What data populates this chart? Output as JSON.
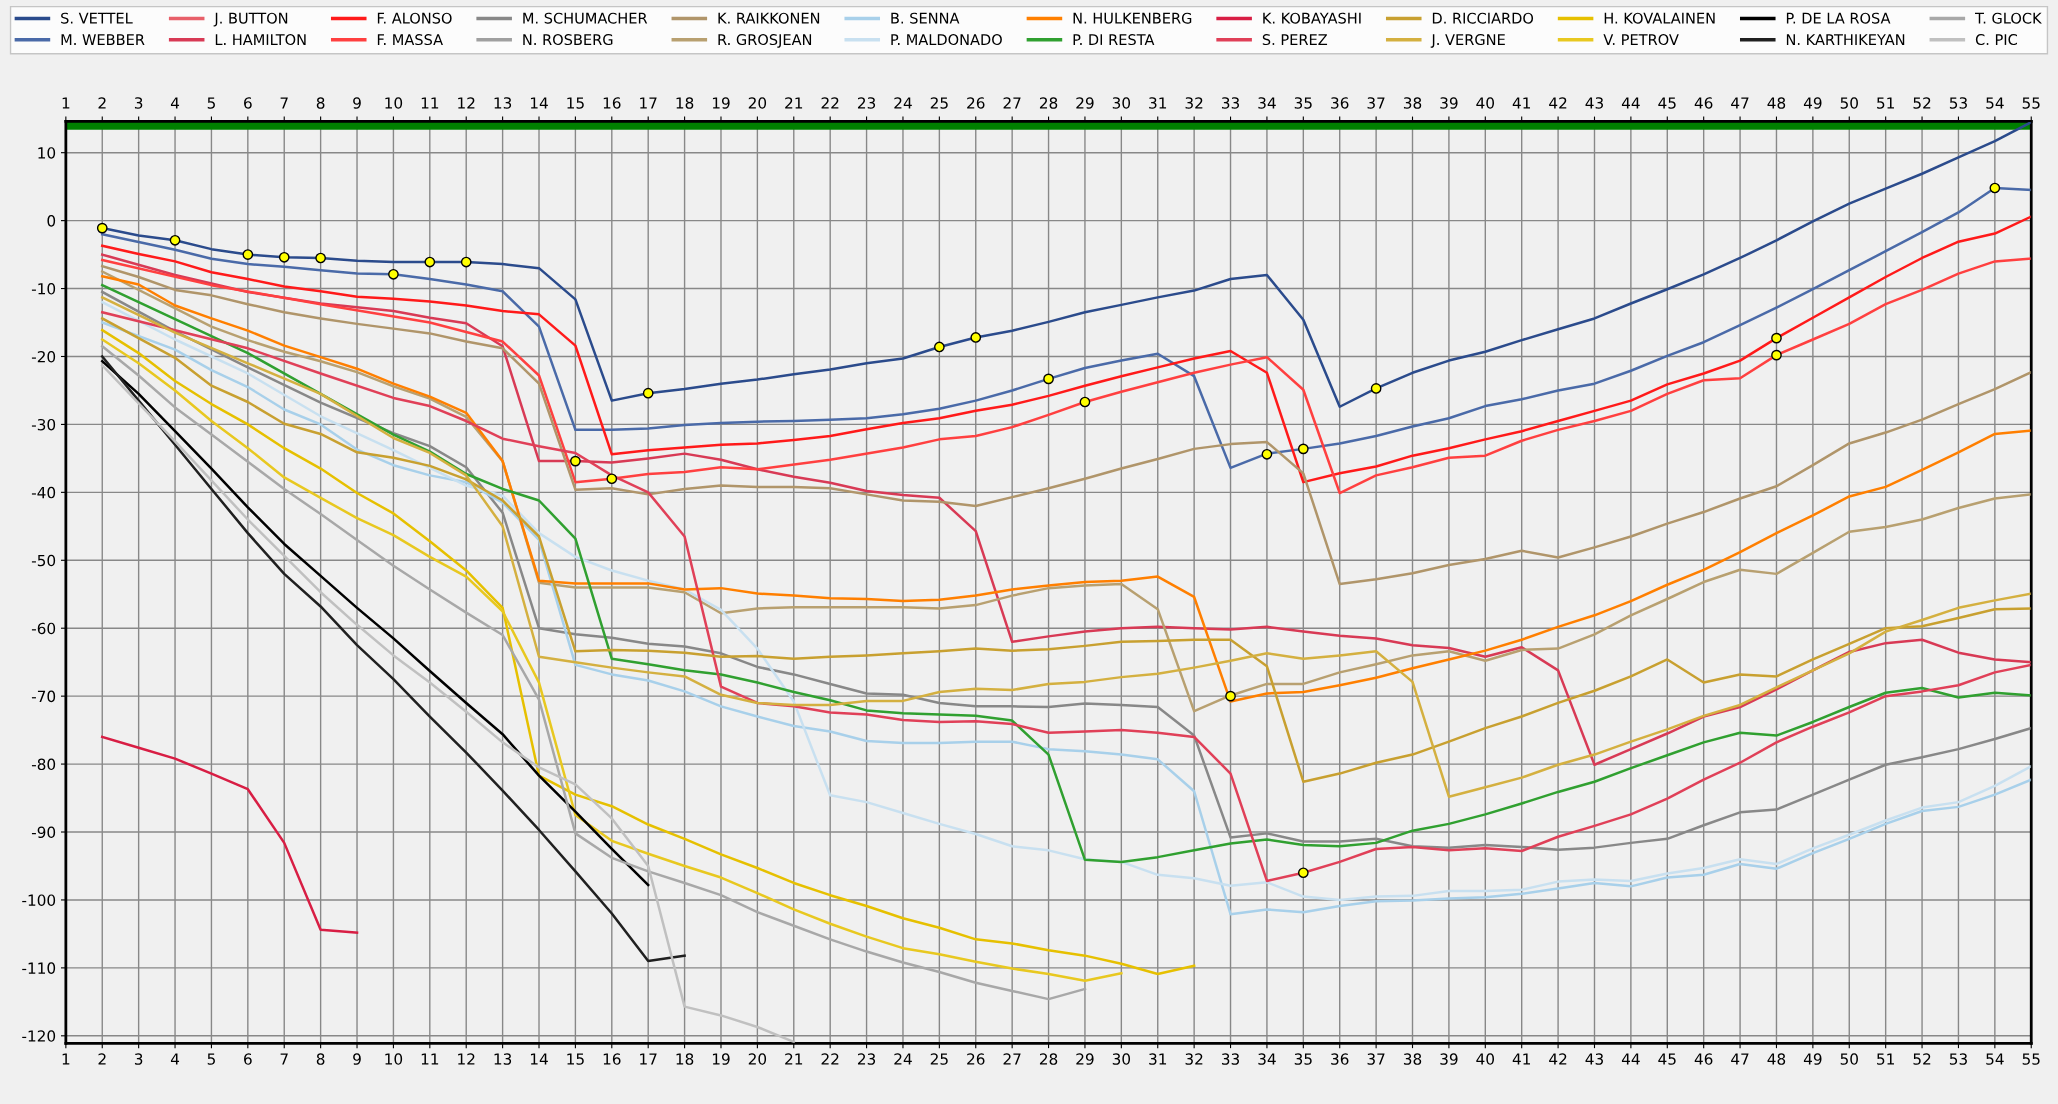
{
  "chart_data": {
    "type": "line",
    "xlim": [
      1,
      55
    ],
    "xticks": [
      1,
      2,
      3,
      4,
      5,
      6,
      7,
      8,
      9,
      10,
      11,
      12,
      13,
      14,
      15,
      16,
      17,
      18,
      19,
      20,
      21,
      22,
      23,
      24,
      25,
      26,
      27,
      28,
      29,
      30,
      31,
      32,
      33,
      34,
      35,
      36,
      37,
      38,
      39,
      40,
      41,
      42,
      43,
      44,
      45,
      46,
      47,
      48,
      49,
      50,
      51,
      52,
      53,
      54,
      55
    ],
    "x2lim": [
      1,
      55
    ],
    "x2ticks": [
      1,
      2,
      3,
      4,
      5,
      6,
      7,
      8,
      9,
      10,
      11,
      12,
      13,
      14,
      15,
      16,
      17,
      18,
      19,
      20,
      21,
      22,
      23,
      24,
      25,
      26,
      27,
      28,
      29,
      30,
      31,
      32,
      33,
      34,
      35,
      36,
      37,
      38,
      39,
      40,
      41,
      42,
      43,
      44,
      45,
      46,
      47,
      48,
      49,
      50,
      51,
      52,
      53,
      54,
      55
    ],
    "ylim": [
      -121.1,
      14.6
    ],
    "yticks": [
      -120,
      -110,
      -100,
      -90,
      -80,
      -70,
      -60,
      -50,
      -40,
      -30,
      -20,
      -10,
      0,
      10
    ],
    "grid": true,
    "legend": "top",
    "line_style": "solid",
    "ref_lines": [
      {
        "axis": "y",
        "value": 14.1,
        "color": "#008000"
      }
    ],
    "series": [
      {
        "name": "S. VETTEL",
        "color": "#2b4b8c",
        "x": [
          2,
          3,
          4,
          5,
          6,
          7,
          8,
          9,
          10,
          11,
          12,
          13,
          14,
          15,
          16,
          17,
          18,
          19,
          20,
          21,
          22,
          23,
          24,
          25,
          26,
          27,
          28,
          29,
          30,
          31,
          32,
          33,
          34,
          35,
          36,
          37,
          38,
          39,
          40,
          41,
          42,
          43,
          44,
          45,
          46,
          47,
          48,
          49,
          50,
          51,
          52,
          53,
          54,
          55
        ],
        "values": [
          -1.1,
          -2.2,
          -2.9,
          -4.2,
          -5,
          -5.4,
          -5.5,
          -5.9,
          -6.1,
          -6.1,
          -6.1,
          -6.4,
          -7.0,
          -11.6,
          -26.5,
          -25.4,
          -24.8,
          -24.0,
          -23.4,
          -22.6,
          -21.9,
          -21.0,
          -20.3,
          -18.6,
          -17.2,
          -16.2,
          -14.9,
          -13.5,
          -12.4,
          -11.3,
          -10.3,
          -8.6,
          -8.0,
          -14.6,
          -27.4,
          -24.7,
          -22.4,
          -20.6,
          -19.3,
          -17.6,
          -16.0,
          -14.4,
          -12.2,
          -10.1,
          -7.9,
          -5.5,
          -2.9,
          -0.1,
          2.5,
          4.7,
          6.9,
          9.3,
          11.7,
          14.5
        ]
      },
      {
        "name": "M. WEBBER",
        "color": "#4a6aa8",
        "x": [
          2,
          4,
          5,
          6,
          7,
          8,
          9,
          10,
          11,
          12,
          13,
          14,
          15,
          16,
          17,
          18,
          19,
          20,
          21,
          22,
          23,
          24,
          25,
          26,
          27,
          28,
          29,
          30,
          31,
          32,
          33,
          34,
          35,
          36,
          37,
          38,
          39,
          40,
          41,
          42,
          43,
          44,
          45,
          46,
          47,
          48,
          49,
          50,
          51,
          52,
          53,
          54,
          55
        ],
        "values": [
          -2.0,
          -4.3,
          -5.6,
          -6.4,
          -6.8,
          -7.3,
          -7.8,
          -7.9,
          -8.6,
          -9.4,
          -10.4,
          -15.6,
          -30.8,
          -30.8,
          -30.6,
          -30.1,
          -29.8,
          -29.6,
          -29.5,
          -29.3,
          -29.1,
          -28.5,
          -27.7,
          -26.5,
          -25.0,
          -23.3,
          -21.7,
          -20.6,
          -19.6,
          -22.9,
          -36.4,
          -34.3,
          -33.6,
          -32.8,
          -31.7,
          -30.3,
          -29.1,
          -27.3,
          -26.3,
          -25.0,
          -24.0,
          -22.1,
          -19.9,
          -17.9,
          -15.4,
          -12.8,
          -10.1,
          -7.3,
          -4.5,
          -1.7,
          1.2,
          4.8,
          4.5
        ]
      },
      {
        "name": "J. BUTTON",
        "color": "#e8606a"
      },
      {
        "name": "L. HAMILTON",
        "color": "#d83a55",
        "x": [
          2,
          4,
          6,
          8,
          10,
          11,
          12,
          13,
          14,
          15,
          16,
          17,
          18,
          19,
          20,
          21,
          22,
          23,
          24,
          25,
          26,
          27,
          28,
          29,
          30,
          31,
          32,
          33,
          34,
          35,
          36,
          37,
          38,
          39,
          40,
          41,
          42,
          43,
          44,
          45,
          46,
          47,
          48,
          49,
          50,
          51,
          52,
          53,
          54,
          55
        ],
        "values": [
          -5.0,
          -8.0,
          -10.5,
          -12.2,
          -13.3,
          -14.3,
          -15.1,
          -18.5,
          -35.4,
          -35.4,
          -35.6,
          -35.0,
          -34.3,
          -35.2,
          -36.6,
          -37.7,
          -38.6,
          -39.8,
          -40.4,
          -40.8,
          -45.7,
          -62.0,
          -61.2,
          -60.5,
          -60.0,
          -59.8,
          -60.0,
          -60.2,
          -59.8,
          -60.5,
          -61.1,
          -61.5,
          -62.5,
          -62.9,
          -64.2,
          -62.8,
          -66.2,
          -80.1,
          -77.8,
          -75.5,
          -73.0,
          -71.6,
          -69.0,
          -66.2,
          -63.5,
          -62.2,
          -61.7,
          -63.6,
          -64.6,
          -65.0
        ]
      },
      {
        "name": "F. ALONSO",
        "color": "#ff1a1a",
        "x": [
          2,
          3,
          4,
          5,
          6,
          7,
          8,
          9,
          10,
          11,
          12,
          13,
          14,
          15,
          16,
          17,
          18,
          19,
          20,
          21,
          22,
          23,
          24,
          25,
          26,
          27,
          28,
          29,
          30,
          31,
          32,
          33,
          34,
          35,
          36,
          37,
          38,
          39,
          40,
          41,
          42,
          43,
          44,
          45,
          46,
          47,
          48,
          49,
          50,
          51,
          52,
          53,
          54,
          55
        ],
        "values": [
          -3.7,
          -4.9,
          -6.0,
          -7.6,
          -8.6,
          -9.7,
          -10.4,
          -11.2,
          -11.5,
          -11.9,
          -12.5,
          -13.3,
          -13.8,
          -18.4,
          -34.4,
          -33.8,
          -33.4,
          -33.0,
          -32.8,
          -32.3,
          -31.7,
          -30.7,
          -29.8,
          -29.1,
          -28.0,
          -27.1,
          -25.8,
          -24.3,
          -22.9,
          -21.6,
          -20.3,
          -19.2,
          -22.4,
          -38.5,
          -37.2,
          -36.2,
          -34.6,
          -33.5,
          -32.2,
          -31.0,
          -29.5,
          -28.0,
          -26.5,
          -24.1,
          -22.5,
          -20.6,
          -17.3,
          -14.3,
          -11.3,
          -8.3,
          -5.5,
          -3.1,
          -1.9,
          0.6
        ]
      },
      {
        "name": "F. MASSA",
        "color": "#ff4040",
        "x": [
          2,
          5,
          8,
          11,
          13,
          14,
          15,
          16,
          17,
          18,
          19,
          20,
          22,
          24,
          25,
          26,
          27,
          28,
          29,
          30,
          31,
          32,
          33,
          34,
          35,
          36,
          37,
          38,
          39,
          40,
          41,
          42,
          43,
          44,
          45,
          46,
          47,
          48,
          49,
          50,
          51,
          52,
          53,
          54,
          55
        ],
        "values": [
          -5.8,
          -9.5,
          -12.3,
          -15.0,
          -17.8,
          -22.8,
          -38.5,
          -38.0,
          -37.3,
          -37.0,
          -36.3,
          -36.6,
          -35.2,
          -33.4,
          -32.2,
          -31.7,
          -30.4,
          -28.6,
          -26.7,
          -25.2,
          -23.8,
          -22.4,
          -21.2,
          -20.1,
          -24.9,
          -40.1,
          -37.5,
          -36.3,
          -34.9,
          -34.6,
          -32.4,
          -30.8,
          -29.5,
          -28.0,
          -25.5,
          -23.5,
          -23.2,
          -19.8,
          -17.5,
          -15.2,
          -12.3,
          -10.2,
          -7.8,
          -6.0,
          -5.6
        ]
      },
      {
        "name": "M. SCHUMACHER",
        "color": "#888888",
        "x": [
          2,
          4,
          6,
          8,
          10,
          11,
          12,
          13,
          14,
          15,
          16,
          17,
          18,
          19,
          20,
          21,
          22,
          23,
          24,
          25,
          26,
          27,
          28,
          29,
          30,
          31,
          32,
          33,
          34,
          35,
          36,
          37,
          38,
          39,
          40,
          41,
          42,
          43,
          44,
          45,
          46,
          47,
          48,
          49,
          50,
          51,
          52,
          53,
          54,
          55
        ],
        "values": [
          -10.5,
          -16.3,
          -21.6,
          -26.8,
          -31.3,
          -33.2,
          -36.3,
          -43.0,
          -60.0,
          -60.9,
          -61.4,
          -62.3,
          -62.7,
          -63.7,
          -65.7,
          -66.8,
          -68.2,
          -69.6,
          -69.8,
          -71.0,
          -71.5,
          -71.5,
          -71.6,
          -71.1,
          -71.3,
          -71.6,
          -75.8,
          -90.8,
          -90.2,
          -91.4,
          -91.4,
          -91.0,
          -92.1,
          -92.3,
          -91.9,
          -92.2,
          -92.6,
          -92.3,
          -91.6,
          -91.0,
          -89.0,
          -87.1,
          -86.7,
          -84.5,
          -82.3,
          -80.1,
          -79.0,
          -77.8,
          -76.3,
          -74.7
        ]
      },
      {
        "name": "N. ROSBERG",
        "color": "#a0a0a0"
      },
      {
        "name": "K. RAIKKONEN",
        "color": "#b0956a",
        "x": [
          2,
          3,
          4,
          5,
          6,
          7,
          8,
          9,
          10,
          11,
          12,
          13,
          14,
          15,
          16,
          17,
          18,
          19,
          20,
          21,
          22,
          23,
          24,
          25,
          26,
          27,
          28,
          29,
          30,
          31,
          32,
          33,
          34,
          35,
          36,
          37,
          38,
          39,
          40,
          41,
          42,
          43,
          44,
          45,
          46,
          47,
          48,
          49,
          50,
          51,
          52,
          53,
          54,
          55
        ],
        "values": [
          -6.7,
          -8.3,
          -10.2,
          -11.0,
          -12.3,
          -13.5,
          -14.4,
          -15.2,
          -15.9,
          -16.6,
          -17.8,
          -18.8,
          -24.0,
          -39.6,
          -39.4,
          -40.3,
          -39.5,
          -39.0,
          -39.2,
          -39.2,
          -39.4,
          -40.3,
          -41.2,
          -41.4,
          -42.0,
          -40.7,
          -39.4,
          -38.0,
          -36.5,
          -35.1,
          -33.6,
          -32.9,
          -32.6,
          -37.2,
          -53.5,
          -52.8,
          -51.9,
          -50.7,
          -49.8,
          -48.6,
          -49.6,
          -48.1,
          -46.5,
          -44.6,
          -42.9,
          -40.9,
          -39.1,
          -36.0,
          -32.8,
          -31.2,
          -29.3,
          -27.0,
          -24.8,
          -22.3
        ]
      },
      {
        "name": "R. GROSJEAN",
        "color": "#b8a070",
        "x": [
          2,
          5,
          6,
          7,
          8,
          9,
          10,
          11,
          12,
          13,
          14,
          15,
          16,
          17,
          18,
          19,
          20,
          21,
          22,
          23,
          24,
          25,
          26,
          27,
          28,
          29,
          30,
          31,
          32,
          33,
          34,
          35,
          36,
          37,
          38,
          39,
          40,
          41,
          42,
          43,
          44,
          45,
          46,
          47,
          48,
          49,
          50,
          51,
          52,
          53,
          54,
          55
        ],
        "values": [
          -7.5,
          -15.6,
          -17.6,
          -19.3,
          -20.7,
          -22.3,
          -24.4,
          -26.2,
          -28.9,
          -35.4,
          -53.3,
          -54.0,
          -54.0,
          -54.0,
          -54.7,
          -57.8,
          -57.1,
          -56.9,
          -56.9,
          -56.9,
          -56.9,
          -57.1,
          -56.6,
          -55.2,
          -54.1,
          -53.7,
          -53.5,
          -57.2,
          -72.2,
          -69.9,
          -68.2,
          -68.2,
          -66.5,
          -65.3,
          -64.0,
          -63.4,
          -64.8,
          -63.2,
          -63.0,
          -60.9,
          -58.1,
          -55.7,
          -53.2,
          -51.4,
          -52.0,
          -48.9,
          -45.8,
          -45.1,
          -44.0,
          -42.3,
          -40.9,
          -40.3
        ]
      },
      {
        "name": "B. SENNA",
        "color": "#a8d0ea",
        "x": [
          2,
          4,
          5,
          6,
          7,
          8,
          9,
          10,
          11,
          12,
          13,
          14,
          15,
          16,
          17,
          18,
          19,
          20,
          21,
          22,
          23,
          24,
          25,
          26,
          27,
          28,
          29,
          30,
          31,
          32,
          33,
          34,
          35,
          36,
          37,
          38,
          39,
          40,
          41,
          42,
          43,
          44,
          45,
          46,
          47,
          48,
          49,
          50,
          51,
          52,
          53,
          54,
          55
        ],
        "values": [
          -15.0,
          -19.0,
          -22.0,
          -24.5,
          -27.8,
          -30.0,
          -33.7,
          -36.0,
          -37.5,
          -38.5,
          -41.5,
          -47.0,
          -65.4,
          -66.8,
          -67.7,
          -69.3,
          -71.5,
          -73.0,
          -74.4,
          -75.2,
          -76.6,
          -76.9,
          -76.9,
          -76.7,
          -76.7,
          -77.8,
          -78.1,
          -78.6,
          -79.3,
          -84.0,
          -102.1,
          -101.4,
          -101.8,
          -100.9,
          -100.2,
          -100.1,
          -99.8,
          -99.6,
          -99.1,
          -98.3,
          -97.5,
          -98.0,
          -96.7,
          -96.3,
          -94.7,
          -95.4,
          -93.1,
          -91.0,
          -88.8,
          -86.9,
          -86.3,
          -84.5,
          -82.3
        ]
      },
      {
        "name": "P. MALDONADO",
        "color": "#c8e0f0",
        "x": [
          2,
          4,
          6,
          8,
          10,
          12,
          13,
          14,
          15,
          16,
          17,
          18,
          19,
          20,
          21,
          22,
          23,
          24,
          25,
          26,
          27,
          28,
          29,
          30,
          31,
          32,
          33,
          34,
          35,
          36,
          37,
          38,
          39,
          40,
          41,
          42,
          43,
          44,
          45,
          46,
          47,
          48,
          49,
          50,
          51,
          52,
          53,
          54,
          55
        ],
        "values": [
          -12.0,
          -17.5,
          -22.5,
          -28.8,
          -33.8,
          -39.0,
          -40.5,
          -46.0,
          -49.5,
          -51.5,
          -53.0,
          -54.3,
          -57.3,
          -63.0,
          -70.8,
          -84.6,
          -85.6,
          -87.2,
          -88.8,
          -90.3,
          -92.1,
          -92.7,
          -94.0,
          -94.4,
          -96.3,
          -96.8,
          -97.9,
          -97.4,
          -99.5,
          -100.0,
          -99.5,
          -99.4,
          -98.7,
          -98.7,
          -98.5,
          -97.3,
          -97.0,
          -97.2,
          -96.1,
          -95.3,
          -94.0,
          -94.7,
          -92.4,
          -90.4,
          -88.3,
          -86.4,
          -85.6,
          -83.2,
          -80.3
        ]
      },
      {
        "name": "N. HULKENBERG",
        "color": "#ff7f00",
        "x": [
          2,
          3,
          4,
          5,
          6,
          7,
          8,
          9,
          10,
          11,
          12,
          13,
          14,
          15,
          16,
          17,
          18,
          19,
          20,
          21,
          22,
          23,
          24,
          25,
          26,
          27,
          28,
          29,
          30,
          31,
          32,
          33,
          34,
          35,
          36,
          37,
          38,
          39,
          40,
          41,
          42,
          43,
          44,
          45,
          46,
          47,
          48,
          49,
          50,
          51,
          52,
          53,
          54,
          55
        ],
        "values": [
          -8.2,
          -9.4,
          -12.5,
          -14.4,
          -16.2,
          -18.4,
          -20.1,
          -21.8,
          -24.0,
          -25.9,
          -28.3,
          -35.4,
          -53.0,
          -53.4,
          -53.4,
          -53.4,
          -54.3,
          -54.1,
          -54.9,
          -55.2,
          -55.6,
          -55.7,
          -56.0,
          -55.8,
          -55.2,
          -54.3,
          -53.7,
          -53.2,
          -53.0,
          -52.4,
          -55.4,
          -70.8,
          -69.6,
          -69.4,
          -68.4,
          -67.3,
          -65.9,
          -64.6,
          -63.3,
          -61.7,
          -59.8,
          -58.1,
          -56.0,
          -53.6,
          -51.4,
          -48.8,
          -46.0,
          -43.4,
          -40.6,
          -39.2,
          -36.7,
          -34.1,
          -31.4,
          -30.9
        ]
      },
      {
        "name": "P. DI RESTA",
        "color": "#30a030",
        "x": [
          2,
          4,
          6,
          8,
          10,
          11,
          12,
          13,
          14,
          15,
          16,
          17,
          18,
          19,
          20,
          21,
          22,
          23,
          24,
          25,
          26,
          27,
          28,
          29,
          30,
          31,
          32,
          33,
          34,
          35,
          36,
          37,
          38,
          39,
          40,
          41,
          42,
          43,
          44,
          45,
          46,
          47,
          48,
          49,
          50,
          51,
          52,
          53,
          54,
          55
        ],
        "values": [
          -9.5,
          -14.5,
          -19.5,
          -25.5,
          -31.5,
          -34.0,
          -37.3,
          -39.5,
          -41.2,
          -46.8,
          -64.5,
          -65.3,
          -66.2,
          -66.8,
          -68.0,
          -69.4,
          -70.6,
          -72.1,
          -72.5,
          -72.7,
          -72.9,
          -73.6,
          -78.6,
          -94.1,
          -94.4,
          -93.7,
          -92.7,
          -91.7,
          -91.1,
          -91.9,
          -92.1,
          -91.6,
          -89.8,
          -88.8,
          -87.4,
          -85.8,
          -84.1,
          -82.6,
          -80.6,
          -78.7,
          -76.8,
          -75.4,
          -75.8,
          -73.8,
          -71.6,
          -69.5,
          -68.8,
          -70.2,
          -69.5,
          -69.9
        ]
      },
      {
        "name": "K. KOBAYASHI",
        "color": "#d81e44",
        "x": [
          2,
          3,
          4,
          5,
          6,
          7,
          8,
          9
        ],
        "values": [
          -76.0,
          -77.6,
          -79.2,
          -81.4,
          -83.7,
          -91.6,
          -104.4,
          -104.8
        ]
      },
      {
        "name": "S. PEREZ",
        "color": "#e04058",
        "x": [
          2,
          6,
          8,
          10,
          11,
          12,
          13,
          14,
          15,
          16,
          17,
          18,
          19,
          20,
          21,
          22,
          23,
          24,
          25,
          26,
          27,
          28,
          29,
          30,
          31,
          32,
          33,
          34,
          35,
          36,
          37,
          38,
          39,
          40,
          41,
          42,
          43,
          44,
          45,
          46,
          47,
          48,
          49,
          50,
          51,
          52,
          53,
          54,
          55
        ],
        "values": [
          -13.5,
          -18.8,
          -22.5,
          -26.1,
          -27.3,
          -29.5,
          -32.1,
          -33.2,
          -34.2,
          -37.5,
          -40.0,
          -46.5,
          -68.6,
          -71.0,
          -71.5,
          -72.4,
          -72.7,
          -73.5,
          -73.8,
          -73.7,
          -74.1,
          -75.4,
          -75.2,
          -75.0,
          -75.4,
          -76.0,
          -81.4,
          -97.2,
          -96.0,
          -94.4,
          -92.5,
          -92.2,
          -92.7,
          -92.4,
          -92.8,
          -90.7,
          -89.1,
          -87.4,
          -85.1,
          -82.3,
          -79.8,
          -76.8,
          -74.5,
          -72.4,
          -70.0,
          -69.3,
          -68.4,
          -66.5,
          -65.4
        ]
      },
      {
        "name": "D. RICCIARDO",
        "color": "#c8a030",
        "x": [
          2,
          4,
          5,
          6,
          7,
          8,
          9,
          10,
          11,
          12,
          13,
          14,
          15,
          16,
          17,
          18,
          19,
          20,
          21,
          22,
          23,
          24,
          25,
          26,
          27,
          28,
          29,
          30,
          31,
          32,
          33,
          34,
          35,
          36,
          37,
          38,
          39,
          40,
          41,
          42,
          43,
          44,
          45,
          46,
          47,
          48,
          49,
          50,
          51,
          52,
          53,
          54,
          55
        ],
        "values": [
          -14.4,
          -20.2,
          -24.3,
          -26.7,
          -29.9,
          -31.4,
          -34.1,
          -34.9,
          -36.1,
          -38.1,
          -41.2,
          -46.5,
          -63.4,
          -63.2,
          -63.3,
          -63.6,
          -64.2,
          -64.1,
          -64.5,
          -64.2,
          -64.0,
          -63.7,
          -63.4,
          -63.0,
          -63.3,
          -63.1,
          -62.6,
          -62.0,
          -61.9,
          -61.7,
          -61.7,
          -65.6,
          -82.6,
          -81.4,
          -79.8,
          -78.6,
          -76.7,
          -74.7,
          -73.0,
          -71.0,
          -69.2,
          -67.1,
          -64.6,
          -68.0,
          -66.8,
          -67.1,
          -64.6,
          -62.3,
          -60.0,
          -59.7,
          -58.5,
          -57.2,
          -57.1
        ]
      },
      {
        "name": "J. VERGNE",
        "color": "#d4b040",
        "x": [
          2,
          4,
          6,
          8,
          10,
          11,
          12,
          13,
          14,
          15,
          16,
          17,
          18,
          19,
          20,
          21,
          22,
          23,
          24,
          25,
          26,
          27,
          28,
          29,
          30,
          31,
          32,
          33,
          34,
          35,
          36,
          37,
          38,
          39,
          40,
          41,
          42,
          43,
          44,
          45,
          46,
          47,
          48,
          49,
          50,
          51,
          52,
          53,
          54,
          55
        ],
        "values": [
          -11.3,
          -16.5,
          -21.0,
          -25.5,
          -32.0,
          -34.2,
          -37.5,
          -45.0,
          -64.2,
          -65.0,
          -65.8,
          -66.5,
          -67.1,
          -69.8,
          -71.0,
          -71.3,
          -71.3,
          -70.7,
          -70.7,
          -69.4,
          -68.9,
          -69.1,
          -68.2,
          -67.9,
          -67.2,
          -66.7,
          -65.8,
          -64.8,
          -63.7,
          -64.5,
          -64.0,
          -63.4,
          -67.9,
          -84.8,
          -83.4,
          -82.0,
          -80.1,
          -78.6,
          -76.7,
          -74.9,
          -72.9,
          -71.3,
          -68.7,
          -66.2,
          -63.7,
          -60.5,
          -58.8,
          -57.0,
          -55.9,
          -54.9
        ]
      },
      {
        "name": "H. KOVALAINEN",
        "color": "#e6c000",
        "x": [
          2,
          3,
          4,
          5,
          6,
          7,
          8,
          9,
          10,
          11,
          12,
          13,
          14,
          15,
          16,
          17,
          18,
          19,
          20,
          21,
          22,
          23,
          24,
          25,
          26,
          27,
          28,
          29,
          30,
          31,
          32
        ],
        "values": [
          -16.1,
          -19.5,
          -23.6,
          -27.0,
          -30.0,
          -33.5,
          -36.5,
          -40.1,
          -43.1,
          -47.2,
          -51.5,
          -57.0,
          -81.7,
          -84.5,
          -86.2,
          -88.9,
          -91.0,
          -93.3,
          -95.3,
          -97.5,
          -99.3,
          -100.9,
          -102.7,
          -104.1,
          -105.8,
          -106.4,
          -107.4,
          -108.2,
          -109.4,
          -110.9,
          -109.7
        ]
      },
      {
        "name": "V. PETROV",
        "color": "#e8c820",
        "x": [
          2,
          3,
          4,
          5,
          6,
          7,
          8,
          9,
          10,
          11,
          12,
          13,
          14,
          15,
          16,
          17,
          18,
          19,
          20,
          21,
          22,
          23,
          24,
          25,
          26,
          27,
          28,
          29,
          30
        ],
        "values": [
          -17.5,
          -21.0,
          -25.0,
          -29.5,
          -33.5,
          -37.8,
          -40.8,
          -43.8,
          -46.3,
          -49.5,
          -52.4,
          -57.5,
          -68.0,
          -87.5,
          -91.3,
          -93.2,
          -95.0,
          -96.7,
          -99.0,
          -101.4,
          -103.5,
          -105.4,
          -107.1,
          -108.0,
          -109.1,
          -110.1,
          -110.9,
          -111.9,
          -110.8
        ]
      },
      {
        "name": "P. DE LA ROSA",
        "color": "#000000",
        "x": [
          2,
          3,
          4,
          5,
          6,
          7,
          8,
          9,
          10,
          11,
          12,
          13,
          14,
          15,
          16,
          17
        ],
        "values": [
          -20.7,
          -25.5,
          -31.0,
          -36.5,
          -42.2,
          -47.6,
          -52.3,
          -57.0,
          -61.5,
          -66.3,
          -71.0,
          -75.6,
          -81.7,
          -87.0,
          -92.5,
          -97.8
        ]
      },
      {
        "name": "N. KARTHIKEYAN",
        "color": "#202020",
        "x": [
          2,
          3,
          4,
          5,
          6,
          7,
          8,
          9,
          10,
          11,
          12,
          13,
          14,
          15,
          16,
          17,
          18
        ],
        "values": [
          -20.0,
          -26.5,
          -33.0,
          -39.5,
          -46.0,
          -52.0,
          -56.8,
          -62.5,
          -67.5,
          -73.0,
          -78.3,
          -83.9,
          -89.7,
          -95.8,
          -102.0,
          -109.0,
          -108.2
        ]
      },
      {
        "name": "T. GLOCK",
        "color": "#a8a8a8",
        "x": [
          2,
          3,
          4,
          5,
          6,
          7,
          8,
          9,
          10,
          11,
          12,
          13,
          14,
          15,
          16,
          17,
          18,
          19,
          20,
          21,
          22,
          23,
          24,
          25,
          26,
          27,
          28,
          29
        ],
        "values": [
          -18.5,
          -22.8,
          -27.5,
          -31.5,
          -35.5,
          -39.5,
          -43.2,
          -47.0,
          -50.8,
          -54.3,
          -57.7,
          -61.0,
          -70.5,
          -90.2,
          -93.8,
          -95.8,
          -97.5,
          -99.3,
          -101.8,
          -103.8,
          -105.8,
          -107.6,
          -109.2,
          -110.6,
          -112.2,
          -113.4,
          -114.6,
          -113.1
        ]
      },
      {
        "name": "C. PIC",
        "color": "#c0c0c0",
        "x": [
          2,
          4,
          6,
          8,
          9,
          10,
          11,
          12,
          13,
          14,
          15,
          16,
          17,
          18,
          19,
          20,
          21
        ],
        "values": [
          -21.3,
          -32.5,
          -44.0,
          -54.7,
          -59.5,
          -64.0,
          -68.0,
          -72.3,
          -76.8,
          -80.5,
          -83.0,
          -88.0,
          -95.0,
          -115.7,
          -117.0,
          -118.7,
          -120.9
        ]
      },
      {
        "type": "scatter",
        "marker": "circle",
        "color": "#ffff00",
        "x": [
          2,
          4,
          6,
          7,
          8,
          10,
          11,
          12,
          15,
          16,
          17,
          25,
          26,
          28,
          29,
          33,
          34,
          35,
          35,
          37,
          48,
          48,
          54
        ],
        "values": [
          -1.1,
          -2.9,
          -5.0,
          -5.4,
          -5.5,
          -7.9,
          -6.1,
          -6.1,
          -35.4,
          -38.0,
          -25.4,
          -18.6,
          -17.2,
          -23.3,
          -26.7,
          -70.0,
          -34.4,
          -33.6,
          -96.0,
          -24.7,
          -17.3,
          -19.8,
          4.8
        ]
      }
    ]
  }
}
